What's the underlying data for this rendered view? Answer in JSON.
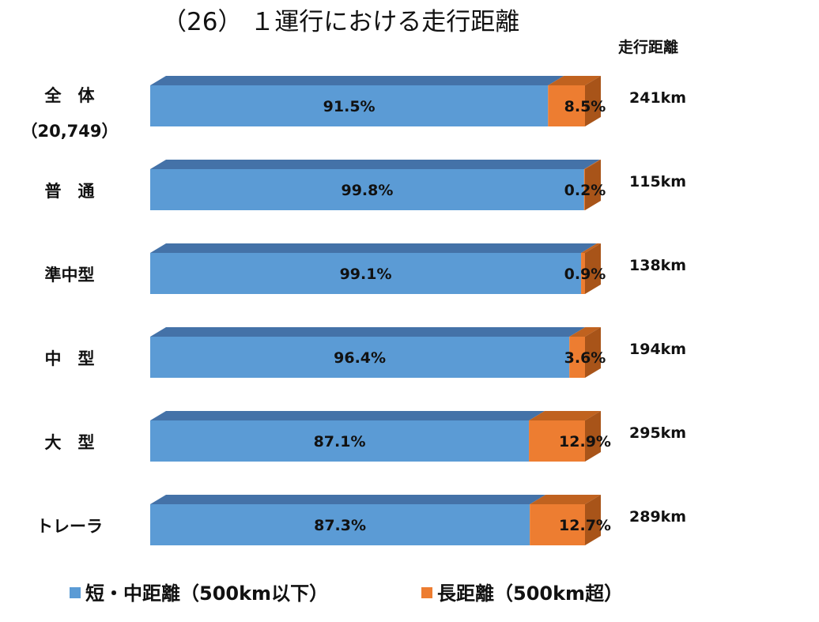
{
  "title": "（26） １運行における走行距離",
  "distance_header": "走行距離",
  "colors": {
    "short_front": "#5b9bd5",
    "short_top": "#4472a8",
    "long_front": "#ed7d31",
    "long_top": "#c0621f",
    "long_side": "#a85419"
  },
  "chart_data": {
    "type": "bar",
    "orientation": "horizontal",
    "stacked": "percent",
    "style": "3d",
    "categories": [
      {
        "label": "全　体",
        "sublabel": "（20,749）"
      },
      {
        "label": "普　通"
      },
      {
        "label": "準中型"
      },
      {
        "label": "中　型"
      },
      {
        "label": "大　型"
      },
      {
        "label": "トレーラ"
      }
    ],
    "series": [
      {
        "name": "短・中距離（500km以下）",
        "values": [
          91.5,
          99.8,
          99.1,
          96.4,
          87.1,
          87.3
        ],
        "labels": [
          "91.5%",
          "99.8%",
          "99.1%",
          "96.4%",
          "87.1%",
          "87.3%"
        ]
      },
      {
        "name": "長距離（500km超）",
        "values": [
          8.5,
          0.2,
          0.9,
          3.6,
          12.9,
          12.7
        ],
        "labels": [
          "8.5%",
          "0.2%",
          "0.9%",
          "3.6%",
          "12.9%",
          "12.7%"
        ]
      }
    ],
    "distances": [
      "241km",
      "115km",
      "138km",
      "194km",
      "295km",
      "289km"
    ],
    "xlim": [
      0,
      100
    ],
    "legend_position": "bottom",
    "grid": false
  }
}
